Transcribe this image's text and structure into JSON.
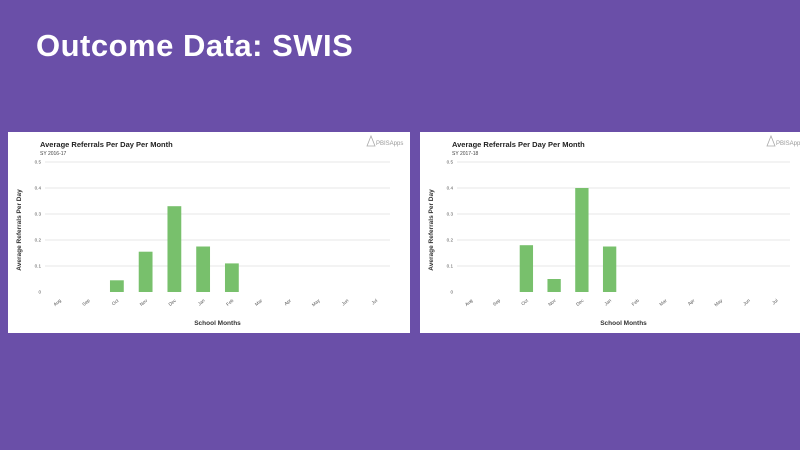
{
  "slide": {
    "title": "Outcome Data: SWIS"
  },
  "colors": {
    "background": "#6a4fa8",
    "bar": "#78c06c",
    "grid": "#d0d0d0"
  },
  "chart_data": [
    {
      "type": "bar",
      "title": "Average Referrals Per Day Per Month",
      "subtitle": "SY 2016-17",
      "xlabel": "School Months",
      "ylabel": "Average Referrals Per Day",
      "logo": "PBISApps",
      "categories": [
        "Aug",
        "Sep",
        "Oct",
        "Nov",
        "Dec",
        "Jan",
        "Feb",
        "Mar",
        "Apr",
        "May",
        "Jun",
        "Jul"
      ],
      "values": [
        0,
        0,
        0.045,
        0.155,
        0.33,
        0.175,
        0.11,
        0,
        0,
        0,
        0,
        0
      ],
      "ylim": [
        0,
        0.5
      ],
      "yticks": [
        "0",
        "0.1",
        "0.2",
        "0.3",
        "0.4",
        "0.5"
      ],
      "grid": true
    },
    {
      "type": "bar",
      "title": "Average Referrals Per Day Per Month",
      "subtitle": "SY 2017-18",
      "xlabel": "School Months",
      "ylabel": "Average Referrals Per Day",
      "logo": "PBISApps",
      "categories": [
        "Aug",
        "Sep",
        "Oct",
        "Nov",
        "Dec",
        "Jan",
        "Feb",
        "Mar",
        "Apr",
        "May",
        "Jun",
        "Jul"
      ],
      "values": [
        0,
        0,
        0.18,
        0.05,
        0.4,
        0.175,
        0,
        0,
        0,
        0,
        0,
        0
      ],
      "ylim": [
        0,
        0.5
      ],
      "yticks": [
        "0",
        "0.1",
        "0.2",
        "0.3",
        "0.4",
        "0.5"
      ],
      "grid": true
    }
  ]
}
